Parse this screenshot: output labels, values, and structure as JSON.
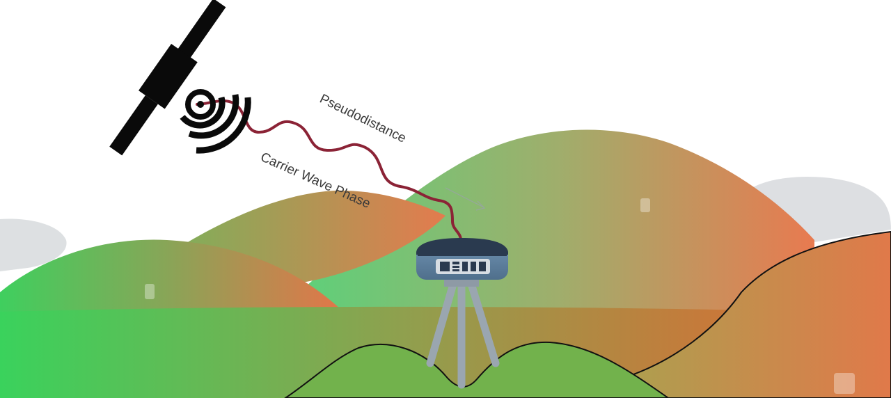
{
  "labels": {
    "pseudodistance": "Pseudodistance",
    "carrier_wave_phase": "Carrier Wave Phase"
  },
  "colors": {
    "green": "#3fcf5e",
    "orange": "#e6794e",
    "olive": "#8fa04e",
    "signal": "#8b2336",
    "receiver_body": "#5d7f9c",
    "receiver_top": "#2a3a4f",
    "tripod": "#9aa6b0",
    "satellite": "#0a0a0a"
  },
  "icons": {
    "satellite": "satellite-icon",
    "signal_waves": "signal-waves-icon",
    "receiver": "gnss-receiver-icon",
    "tripod": "tripod-icon"
  }
}
